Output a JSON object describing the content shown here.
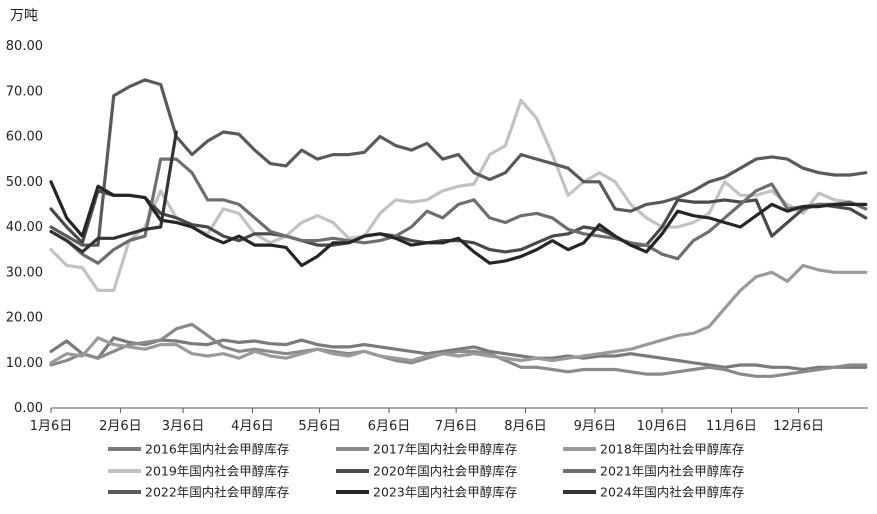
{
  "chart_data": {
    "type": "line",
    "title": "",
    "ylabel": "万吨",
    "xlabel": "",
    "ylim": [
      0,
      80
    ],
    "yticks": [
      "0.00",
      "10.00",
      "20.00",
      "30.00",
      "40.00",
      "50.00",
      "60.00",
      "70.00",
      "80.00"
    ],
    "xticks": [
      "1月6日",
      "2月6日",
      "3月6日",
      "4月6日",
      "5月6日",
      "6月6日",
      "7月6日",
      "8月6日",
      "9月6日",
      "10月6日",
      "11月6日",
      "12月6日"
    ],
    "grid": false,
    "legend_position": "bottom",
    "x_dates": [
      "01-06",
      "01-13",
      "01-20",
      "01-27",
      "02-03",
      "02-10",
      "02-17",
      "02-24",
      "03-03",
      "03-10",
      "03-17",
      "03-24",
      "03-31",
      "04-07",
      "04-14",
      "04-21",
      "04-28",
      "05-05",
      "05-12",
      "05-19",
      "05-26",
      "06-02",
      "06-09",
      "06-16",
      "06-23",
      "06-30",
      "07-07",
      "07-14",
      "07-21",
      "07-28",
      "08-04",
      "08-11",
      "08-18",
      "08-25",
      "09-01",
      "09-08",
      "09-15",
      "09-22",
      "09-29",
      "10-06",
      "10-13",
      "10-20",
      "10-27",
      "11-03",
      "11-10",
      "11-17",
      "11-24",
      "12-01",
      "12-08",
      "12-15",
      "12-22",
      "12-29",
      "01-05"
    ],
    "series": [
      {
        "name": "2016年国内社会甲醇库存",
        "color": "#7a7a7a",
        "values": [
          12.5,
          14.8,
          12.0,
          11.0,
          15.5,
          14.5,
          14.0,
          15.0,
          14.8,
          14.2,
          14.0,
          15.0,
          14.5,
          14.8,
          14.2,
          14.0,
          15.0,
          14.0,
          13.5,
          13.5,
          14.0,
          13.5,
          13.0,
          12.5,
          12.0,
          12.5,
          13.0,
          13.5,
          12.5,
          12.0,
          11.5,
          11.0,
          11.0,
          11.5,
          11.0,
          11.5,
          11.5,
          12.0,
          11.5,
          11.0,
          10.5,
          10.0,
          9.5,
          9.0,
          9.5,
          9.5,
          9.0,
          9.0,
          8.5,
          9.0,
          9.0,
          9.0,
          9.0
        ]
      },
      {
        "name": "2017年国内社会甲醇库存",
        "color": "#8a8a8a",
        "values": [
          9.5,
          10.5,
          12.0,
          11.0,
          12.5,
          14.0,
          14.5,
          15.0,
          17.5,
          18.5,
          16.0,
          13.5,
          12.5,
          13.0,
          12.5,
          12.0,
          12.5,
          13.0,
          12.5,
          12.0,
          12.5,
          11.5,
          10.5,
          10.0,
          11.0,
          12.0,
          12.5,
          12.5,
          12.0,
          10.5,
          9.0,
          9.0,
          8.5,
          8.0,
          8.5,
          8.5,
          8.5,
          8.0,
          7.5,
          7.5,
          8.0,
          8.5,
          9.0,
          8.5,
          7.5,
          7.0,
          7.0,
          7.5,
          8.0,
          8.5,
          9.0,
          9.5,
          9.5
        ]
      },
      {
        "name": "2018年国内社会甲醇库存",
        "color": "#9a9a9a",
        "values": [
          10.0,
          12.0,
          11.5,
          15.5,
          14.0,
          13.5,
          13.0,
          14.0,
          14.0,
          12.0,
          11.5,
          12.0,
          11.0,
          12.5,
          11.5,
          11.0,
          12.0,
          13.0,
          12.0,
          11.5,
          12.5,
          11.5,
          11.0,
          10.5,
          11.5,
          12.0,
          11.5,
          12.0,
          11.5,
          11.0,
          10.5,
          11.0,
          10.5,
          11.0,
          11.5,
          12.0,
          12.5,
          13.0,
          14.0,
          15.0,
          16.0,
          16.5,
          18.0,
          22.0,
          26.0,
          29.0,
          30.0,
          28.0,
          31.5,
          30.5,
          30.0,
          30.0,
          30.0
        ]
      },
      {
        "name": "2019年国内社会甲醇库存",
        "color": "#c2c2c2",
        "values": [
          35.0,
          31.5,
          31.0,
          26.0,
          26.0,
          37.0,
          40.0,
          48.0,
          42.0,
          40.0,
          38.5,
          44.0,
          43.0,
          38.5,
          36.5,
          38.0,
          41.0,
          42.5,
          41.0,
          37.5,
          38.0,
          43.0,
          46.0,
          45.5,
          46.0,
          48.0,
          49.0,
          49.5,
          56.0,
          58.0,
          68.0,
          64.0,
          56.0,
          47.0,
          50.0,
          52.0,
          50.0,
          45.0,
          42.0,
          40.0,
          40.0,
          41.0,
          43.0,
          50.0,
          47.0,
          47.0,
          48.0,
          45.0,
          43.0,
          47.5,
          46.0,
          45.5,
          44.0
        ]
      },
      {
        "name": "2020年国内社会甲醇库存",
        "color": "#4a4a4a",
        "values": [
          44.0,
          40.0,
          36.5,
          48.0,
          47.0,
          47.0,
          46.5,
          43.0,
          42.0,
          40.5,
          40.0,
          38.0,
          37.0,
          38.5,
          38.5,
          38.0,
          37.0,
          36.0,
          36.0,
          36.5,
          38.0,
          38.5,
          38.0,
          37.0,
          36.5,
          37.0,
          37.0,
          36.5,
          35.0,
          34.5,
          35.0,
          36.5,
          38.0,
          38.5,
          40.0,
          39.5,
          38.0,
          36.0,
          36.0,
          40.0,
          46.0,
          45.5,
          45.5,
          46.0,
          45.5,
          46.0,
          38.0,
          41.0,
          44.0,
          45.0,
          44.5,
          44.0,
          42.0
        ]
      },
      {
        "name": "2021年国内社会甲醇库存",
        "color": "#6e6e6e",
        "values": [
          39.0,
          37.0,
          34.0,
          32.0,
          35.0,
          37.0,
          38.0,
          55.0,
          55.0,
          52.0,
          46.0,
          46.0,
          45.0,
          42.0,
          39.0,
          38.0,
          37.0,
          37.0,
          37.5,
          37.0,
          36.5,
          37.0,
          38.0,
          40.0,
          43.5,
          42.0,
          45.0,
          46.0,
          42.0,
          41.0,
          42.5,
          43.0,
          42.0,
          39.5,
          38.5,
          38.0,
          37.5,
          36.5,
          36.0,
          34.0,
          33.0,
          37.0,
          39.0,
          42.0,
          45.0,
          48.0,
          49.5,
          44.0,
          44.5,
          45.0,
          45.0,
          45.5,
          44.0
        ]
      },
      {
        "name": "2022年国内社会甲醇库存",
        "color": "#5a5a5a",
        "values": [
          40.0,
          38.0,
          36.0,
          36.0,
          69.0,
          71.0,
          72.5,
          71.5,
          60.0,
          56.0,
          59.0,
          61.0,
          60.5,
          57.0,
          54.0,
          53.5,
          57.0,
          55.0,
          56.0,
          56.0,
          56.5,
          60.0,
          58.0,
          57.0,
          58.5,
          55.0,
          56.0,
          52.0,
          50.5,
          52.0,
          56.0,
          55.0,
          54.0,
          53.0,
          50.0,
          50.0,
          44.0,
          43.5,
          45.0,
          45.5,
          46.5,
          48.0,
          50.0,
          51.0,
          53.0,
          55.0,
          55.5,
          55.0,
          53.0,
          52.0,
          51.5,
          51.5,
          52.0
        ]
      },
      {
        "name": "2023年国内社会甲醇库存",
        "color": "#262626",
        "values": [
          50.0,
          42.0,
          38.0,
          49.0,
          47.0,
          47.0,
          46.5,
          41.5,
          41.0,
          40.0,
          38.0,
          36.5,
          38.0,
          36.0,
          36.0,
          35.5,
          31.5,
          33.5,
          36.5,
          36.5,
          38.0,
          38.5,
          37.5,
          36.0,
          36.5,
          36.5,
          37.5,
          34.5,
          32.0,
          32.5,
          33.5,
          35.0,
          37.0,
          35.0,
          36.5,
          40.5,
          38.0,
          36.0,
          34.5,
          38.5,
          43.5,
          42.5,
          42.0,
          41.0,
          40.0,
          42.5,
          45.0,
          43.5,
          44.5,
          44.5,
          45.0,
          45.0,
          45.0
        ]
      },
      {
        "name": "2024年国内社会甲醇库存",
        "color": "#333333",
        "values": [
          39.0,
          37.0,
          34.5,
          37.5,
          37.5,
          38.5,
          39.5,
          40.0,
          61.0
        ]
      }
    ]
  }
}
